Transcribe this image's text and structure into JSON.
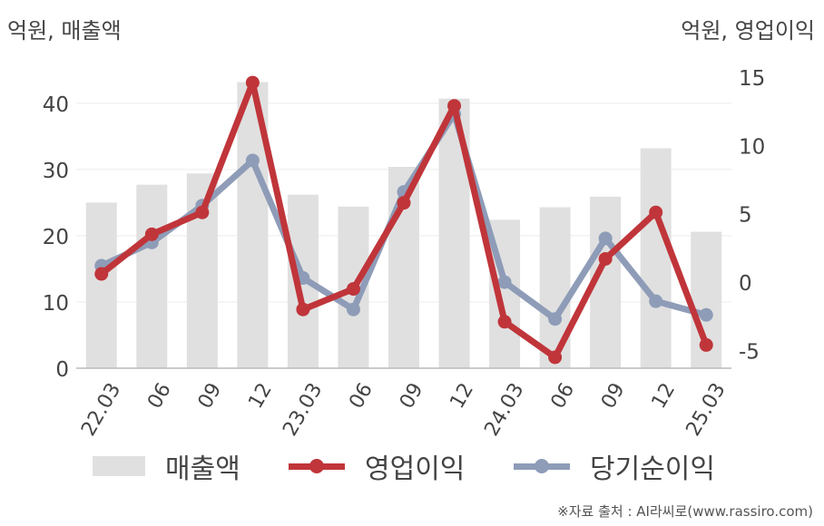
{
  "units": {
    "left": "억원, 매출액",
    "right": "억원, 영업이익"
  },
  "chart_data": {
    "type": "bar+line",
    "categories": [
      "22.03",
      "06",
      "09",
      "12",
      "23.03",
      "06",
      "09",
      "12",
      "24.03",
      "06",
      "09",
      "12",
      "25.03"
    ],
    "left_axis": {
      "ylim": [
        0,
        46
      ],
      "ticks": [
        0,
        10,
        20,
        30,
        40
      ]
    },
    "right_axis": {
      "ylim": [
        -6.3,
        16
      ],
      "ticks": [
        -5,
        0,
        5,
        10,
        15
      ]
    },
    "series": [
      {
        "name": "매출액",
        "type": "bar",
        "axis": "left",
        "color": "#e0e0e0",
        "values": [
          25.0,
          27.7,
          29.4,
          43.2,
          26.2,
          24.4,
          30.4,
          40.7,
          22.4,
          24.3,
          25.9,
          33.2,
          20.6
        ]
      },
      {
        "name": "영업이익",
        "type": "line",
        "axis": "right",
        "color": "#c0353a",
        "values": [
          0.6,
          3.5,
          5.1,
          14.6,
          -2.0,
          -0.5,
          5.8,
          12.9,
          -2.9,
          -5.5,
          1.7,
          5.1,
          -4.6
        ]
      },
      {
        "name": "당기순이익",
        "type": "line",
        "axis": "right",
        "color": "#8e9cb8",
        "values": [
          1.2,
          2.9,
          5.6,
          8.9,
          0.3,
          -2.0,
          6.6,
          12.3,
          0.0,
          -2.7,
          3.2,
          -1.4,
          -2.4
        ]
      }
    ]
  },
  "legend": [
    "매출액",
    "영업이익",
    "당기순이익"
  ],
  "source": "※자료 출처 : AI라씨로(www.rassiro.com)"
}
